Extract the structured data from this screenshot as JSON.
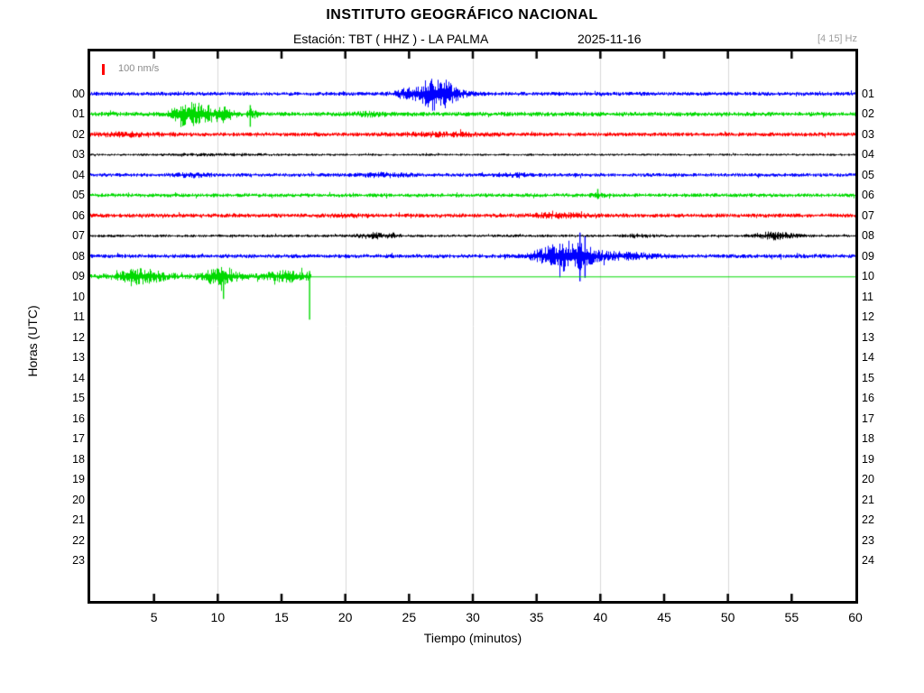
{
  "header": {
    "title": "INSTITUTO GEOGRÁFICO NACIONAL",
    "station_label": "Estación:  TBT ( HHZ ) - LA PALMA",
    "date": "2025-11-16",
    "filter": "[4 15] Hz"
  },
  "legend": {
    "scale_label": "100 nm/s",
    "scale_color": "#ff0000"
  },
  "axes": {
    "x_label": "Tiempo (minutos)",
    "y_label": "Horas (UTC)",
    "x_ticks": [
      "5",
      "10",
      "15",
      "20",
      "25",
      "30",
      "35",
      "40",
      "45",
      "50",
      "55",
      "60"
    ],
    "left_hours": [
      "00",
      "01",
      "02",
      "03",
      "04",
      "05",
      "06",
      "07",
      "08",
      "09",
      "10",
      "11",
      "12",
      "13",
      "14",
      "15",
      "16",
      "17",
      "18",
      "19",
      "20",
      "21",
      "22",
      "23"
    ],
    "right_hours": [
      "01",
      "02",
      "03",
      "04",
      "05",
      "06",
      "07",
      "08",
      "09",
      "10",
      "11",
      "12",
      "13",
      "14",
      "15",
      "16",
      "17",
      "18",
      "19",
      "20",
      "21",
      "22",
      "23",
      "24"
    ]
  },
  "chart_data": {
    "type": "seismogram-helicorder",
    "title": "INSTITUTO GEOGRÁFICO NACIONAL",
    "subtitle": "Estación: TBT ( HHZ ) - LA PALMA  2025-11-16",
    "xlabel": "Tiempo (minutos)",
    "ylabel": "Horas (UTC)",
    "x_range_minutes": [
      0,
      60
    ],
    "tick_minutes": [
      5,
      10,
      15,
      20,
      25,
      30,
      35,
      40,
      45,
      50,
      55
    ],
    "gridline_minutes": [
      10,
      20,
      30,
      40,
      50
    ],
    "grid_color": "#d9d9d9",
    "frame_color": "#000000",
    "filter_band_hz": "[4 15] Hz",
    "scale_bar": {
      "label": "100 nm/s",
      "color": "#ff0000"
    },
    "color_cycle": [
      "#0000ff",
      "#00d900",
      "#ff0000",
      "#000000"
    ],
    "rows": [
      {
        "hour": "00",
        "end_hour": "01",
        "color": "#0000ff",
        "noise": 2.1,
        "events": [
          {
            "type": "burst",
            "c": 26.3,
            "a": 4,
            "sl": 1.3,
            "sr": 1.8
          },
          {
            "type": "burst",
            "c": 27.1,
            "a": 13,
            "sl": 0.9,
            "sr": 1.1
          },
          {
            "type": "burst",
            "c": 24.6,
            "a": 3,
            "sl": 0.4,
            "sr": 0.4
          }
        ]
      },
      {
        "hour": "01",
        "end_hour": "02",
        "color": "#00d900",
        "noise": 2.4,
        "events": [
          {
            "type": "burst",
            "c": 8.2,
            "a": 11,
            "sl": 0.9,
            "sr": 1.2
          },
          {
            "type": "burst",
            "c": 7.0,
            "a": 5,
            "sl": 0.5,
            "sr": 0.5
          },
          {
            "type": "burst",
            "c": 10.4,
            "a": 5,
            "sl": 0.4,
            "sr": 0.6
          },
          {
            "type": "burst",
            "c": 12.5,
            "a": 4,
            "sl": 0.2,
            "sr": 0.4
          },
          {
            "type": "spike",
            "m": 12.55,
            "up": 10,
            "dn": 14
          },
          {
            "type": "burst",
            "c": 22.0,
            "a": 1.5,
            "sl": 1.0,
            "sr": 1.0
          }
        ]
      },
      {
        "hour": "02",
        "end_hour": "03",
        "color": "#ff0000",
        "noise": 2.2,
        "events": [
          {
            "type": "burst",
            "c": 3.0,
            "a": 1.4,
            "sl": 2.0,
            "sr": 2.0
          },
          {
            "type": "burst",
            "c": 27.0,
            "a": 1.4,
            "sl": 2.0,
            "sr": 3.0
          }
        ]
      },
      {
        "hour": "03",
        "end_hour": "04",
        "color": "#000000",
        "noise": 1.2,
        "events": [
          {
            "type": "burst",
            "c": 10.0,
            "a": 0.8,
            "sl": 3.0,
            "sr": 3.0
          }
        ]
      },
      {
        "hour": "04",
        "end_hour": "05",
        "color": "#0000ff",
        "noise": 2.0,
        "events": [
          {
            "type": "burst",
            "c": 8.0,
            "a": 1.4,
            "sl": 1.0,
            "sr": 1.0
          },
          {
            "type": "burst",
            "c": 23.0,
            "a": 1.4,
            "sl": 1.5,
            "sr": 1.5
          },
          {
            "type": "burst",
            "c": 33.0,
            "a": 1.2,
            "sl": 1.0,
            "sr": 1.0
          }
        ]
      },
      {
        "hour": "05",
        "end_hour": "06",
        "color": "#00d900",
        "noise": 2.1,
        "events": [
          {
            "type": "burst",
            "c": 39.8,
            "a": 2.0,
            "sl": 0.3,
            "sr": 0.3
          },
          {
            "type": "spike",
            "m": 39.8,
            "up": 7,
            "dn": 4
          }
        ]
      },
      {
        "hour": "06",
        "end_hour": "07",
        "color": "#ff0000",
        "noise": 2.2,
        "events": [
          {
            "type": "burst",
            "c": 36.5,
            "a": 1.6,
            "sl": 1.5,
            "sr": 2.0
          },
          {
            "type": "burst",
            "c": 20.0,
            "a": 1.0,
            "sl": 1.0,
            "sr": 1.0
          }
        ]
      },
      {
        "hour": "07",
        "end_hour": "08",
        "color": "#000000",
        "noise": 1.5,
        "events": [
          {
            "type": "burst",
            "c": 22.3,
            "a": 2.4,
            "sl": 1.0,
            "sr": 1.2
          },
          {
            "type": "burst",
            "c": 53.5,
            "a": 3.5,
            "sl": 1.0,
            "sr": 1.3
          },
          {
            "type": "burst",
            "c": 43.0,
            "a": 1.4,
            "sl": 0.8,
            "sr": 0.8
          }
        ]
      },
      {
        "hour": "08",
        "end_hour": "09",
        "color": "#0000ff",
        "noise": 2.2,
        "events": [
          {
            "type": "burst",
            "c": 37.9,
            "a": 14,
            "sl": 1.4,
            "sr": 1.1
          },
          {
            "type": "burst",
            "c": 36.0,
            "a": 5,
            "sl": 1.0,
            "sr": 1.0
          },
          {
            "type": "burst",
            "c": 41.0,
            "a": 3,
            "sl": 1.0,
            "sr": 2.5
          },
          {
            "type": "spike",
            "m": 38.4,
            "up": 26,
            "dn": 28
          },
          {
            "type": "spike",
            "m": 38.8,
            "up": 22,
            "dn": 24
          }
        ]
      },
      {
        "hour": "09",
        "end_hour": "10",
        "color": "#00d900",
        "noise": 2.8,
        "flat_after": 17.3,
        "events": [
          {
            "type": "burst",
            "c": 3.9,
            "a": 6,
            "sl": 1.2,
            "sr": 1.4
          },
          {
            "type": "burst",
            "c": 10.2,
            "a": 9,
            "sl": 0.8,
            "sr": 0.9
          },
          {
            "type": "spike",
            "m": 10.45,
            "up": 6,
            "dn": 25
          },
          {
            "type": "burst",
            "c": 15.5,
            "a": 4.5,
            "sl": 1.2,
            "sr": 1.2
          },
          {
            "type": "spike",
            "m": 17.2,
            "up": 6,
            "dn": 48
          }
        ]
      }
    ],
    "empty_row_hours": [
      "10",
      "11",
      "12",
      "13",
      "14",
      "15",
      "16",
      "17",
      "18",
      "19",
      "20",
      "21",
      "22",
      "23"
    ]
  }
}
